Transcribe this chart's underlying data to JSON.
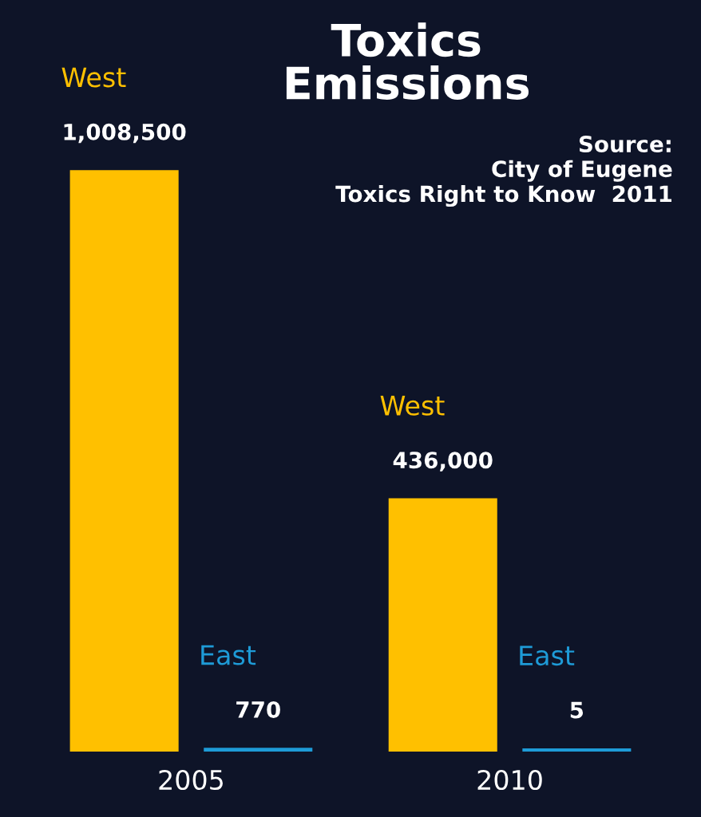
{
  "chart_data": {
    "type": "bar",
    "title": "Toxics\nEmissions",
    "categories": [
      "2005",
      "2010"
    ],
    "series": [
      {
        "name": "West",
        "color": "#ffc000",
        "values": [
          1008500,
          436000
        ],
        "value_labels": [
          "1,008,500",
          "436,000"
        ]
      },
      {
        "name": "East",
        "color": "#1e9bd7",
        "values": [
          770,
          5
        ],
        "value_labels": [
          "770",
          "5"
        ]
      }
    ],
    "annotations": [
      "Source:\nCity of Eugene\nToxics Right to Know  2011"
    ],
    "grid": false,
    "legend": false
  }
}
